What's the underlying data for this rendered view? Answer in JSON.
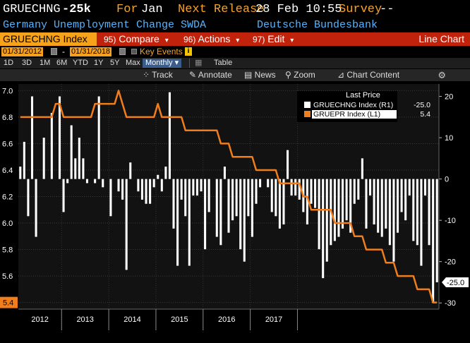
{
  "header": {
    "ticker_short": "GRUECHNG",
    "last_value": "-25k",
    "for_label": "For",
    "for_period": "Jan",
    "next_release_label": "Next Release",
    "next_release_value": "28 Feb 10:55",
    "survey_label": "Survey",
    "survey_value": "--",
    "description": "Germany Unemployment Change SWDA",
    "source": "Deutsche Bundesbank"
  },
  "command_bar": {
    "ticker": "GRUECHNG Index",
    "compare_num": "95)",
    "compare_label": "Compare",
    "actions_num": "96)",
    "actions_label": "Actions",
    "edit_num": "97)",
    "edit_label": "Edit",
    "chart_type": "Line Chart",
    "dropdown_arrow": "▾"
  },
  "date_row": {
    "start_date": "01/31/2012",
    "dash": "-",
    "end_date": "01/31/2018",
    "key_events_label": "Key Events",
    "info_badge": "i"
  },
  "period_row": {
    "periods": [
      "1D",
      "3D",
      "1M",
      "6M",
      "YTD",
      "1Y",
      "5Y",
      "Max"
    ],
    "frequency": "Monthly ▾",
    "table_label": "Table"
  },
  "toolbar": {
    "track_label": "Track",
    "annotate_label": "Annotate",
    "news_label": "News",
    "zoom_label": "Zoom",
    "chart_content_label": "Chart Content",
    "gear_icon": "gear-icon"
  },
  "chart_data": {
    "type": "bar+line",
    "x_ticks": [
      "2012",
      "2013",
      "2014",
      "2015",
      "2016",
      "2017"
    ],
    "left_axis": {
      "ticks": [
        "7.0",
        "6.8",
        "6.6",
        "6.4",
        "6.2",
        "6.0",
        "5.8",
        "5.6",
        "5.4"
      ],
      "ylim": [
        5.35,
        7.05
      ]
    },
    "right_axis": {
      "ticks": [
        "20",
        "10",
        "0",
        "-10",
        "-20",
        "-30"
      ],
      "ylim": [
        -31.5,
        23
      ]
    },
    "legend": {
      "title": "Last Price",
      "entries": [
        {
          "name": "GRUECHNG Index  (R1)",
          "value": "-25.0",
          "color": "#ffffff"
        },
        {
          "name": "GRUEPR Index  (L1)",
          "value": "5.4",
          "color": "#f07e1c"
        }
      ],
      "position": "top-right"
    },
    "last_value_labels": {
      "right": "-25.0",
      "left": "5.4"
    },
    "bar_series": {
      "name": "GRUECHNG Index",
      "axis": "right",
      "color": "#ffffff",
      "values": [
        3,
        9,
        -9,
        20,
        -14,
        0,
        10,
        0,
        16,
        0,
        20,
        -8,
        -1,
        13,
        5,
        10,
        5,
        -1,
        0,
        -1,
        20,
        -2,
        0,
        -9,
        0,
        -3,
        -5,
        -22,
        4,
        0,
        -3,
        -5,
        -6,
        -6,
        -2,
        1,
        -3,
        3,
        21,
        -12,
        -21,
        -5,
        -9,
        -21,
        -4,
        -4,
        -3,
        -17,
        -8,
        0,
        -14,
        -16,
        3,
        -13,
        -10,
        -9,
        -17,
        -20,
        -9,
        -14,
        -6,
        -2,
        0,
        -2,
        -8,
        -9,
        -12,
        -11,
        7,
        -4,
        -4,
        -5,
        -8,
        -11,
        -6,
        -7,
        -17,
        -24,
        -20,
        -16,
        -15,
        -14,
        -12,
        -10,
        -13,
        -6,
        -5,
        5,
        -12,
        -4,
        -11,
        -13,
        -14,
        -12,
        -16,
        -20,
        -13,
        -8,
        -10,
        -4,
        -15,
        -16,
        -21,
        -4,
        -16,
        -30,
        -25
      ]
    },
    "line_series": {
      "name": "GRUEPR Index",
      "axis": "left",
      "color": "#f07e1c",
      "values": [
        6.8,
        6.8,
        6.8,
        6.8,
        6.8,
        6.8,
        6.8,
        6.8,
        6.8,
        6.9,
        6.9,
        6.8,
        6.8,
        6.8,
        6.8,
        6.8,
        6.8,
        6.8,
        6.8,
        6.9,
        6.9,
        6.9,
        6.9,
        6.9,
        6.9,
        7.0,
        6.9,
        6.8,
        6.8,
        6.8,
        6.8,
        6.8,
        6.8,
        6.8,
        6.8,
        6.9,
        6.8,
        6.8,
        6.8,
        6.8,
        6.8,
        6.8,
        6.7,
        6.7,
        6.7,
        6.7,
        6.7,
        6.7,
        6.7,
        6.7,
        6.7,
        6.6,
        6.6,
        6.6,
        6.5,
        6.5,
        6.5,
        6.5,
        6.5,
        6.5,
        6.4,
        6.4,
        6.4,
        6.4,
        6.4,
        6.4,
        6.3,
        6.3,
        6.3,
        6.3,
        6.3,
        6.3,
        6.2,
        6.2,
        6.1,
        6.1,
        6.1,
        6.1,
        6.1,
        6.1,
        6.0,
        6.0,
        6.0,
        6.0,
        6.0,
        5.9,
        5.9,
        5.9,
        5.8,
        5.8,
        5.8,
        5.8,
        5.8,
        5.7,
        5.7,
        5.7,
        5.6,
        5.6,
        5.6,
        5.6,
        5.6,
        5.5,
        5.5,
        5.5,
        5.5,
        5.4,
        5.4
      ]
    }
  }
}
